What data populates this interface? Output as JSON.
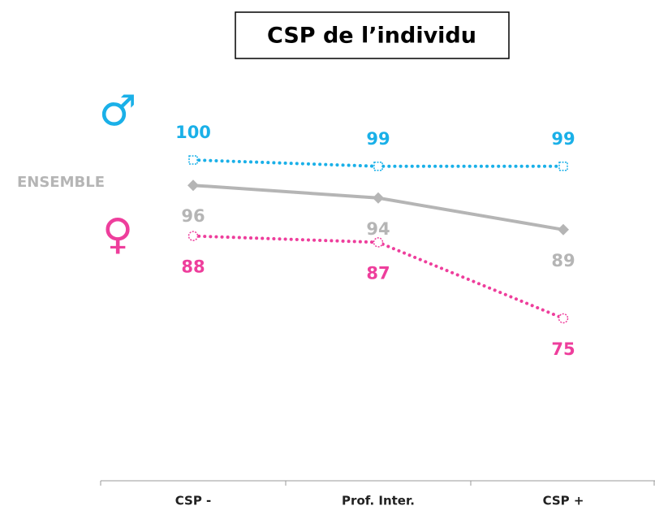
{
  "chart_data": {
    "type": "line",
    "title": "CSP de l’individu",
    "categories": [
      "CSP -",
      "Prof. Inter.",
      "CSP +"
    ],
    "series": [
      {
        "name": "♂",
        "color": "#1ab0e8",
        "marker": "square",
        "linestyle": "dotted",
        "values": [
          100,
          99,
          99
        ]
      },
      {
        "name": "ENSEMBLE",
        "color": "#b5b5b5",
        "marker": "diamond",
        "linestyle": "solid",
        "values": [
          96,
          94,
          89
        ]
      },
      {
        "name": "♀",
        "color": "#ee3e9c",
        "marker": "circle",
        "linestyle": "dotted",
        "values": [
          88,
          87,
          75
        ]
      }
    ],
    "ylim": [
      50,
      100
    ]
  }
}
